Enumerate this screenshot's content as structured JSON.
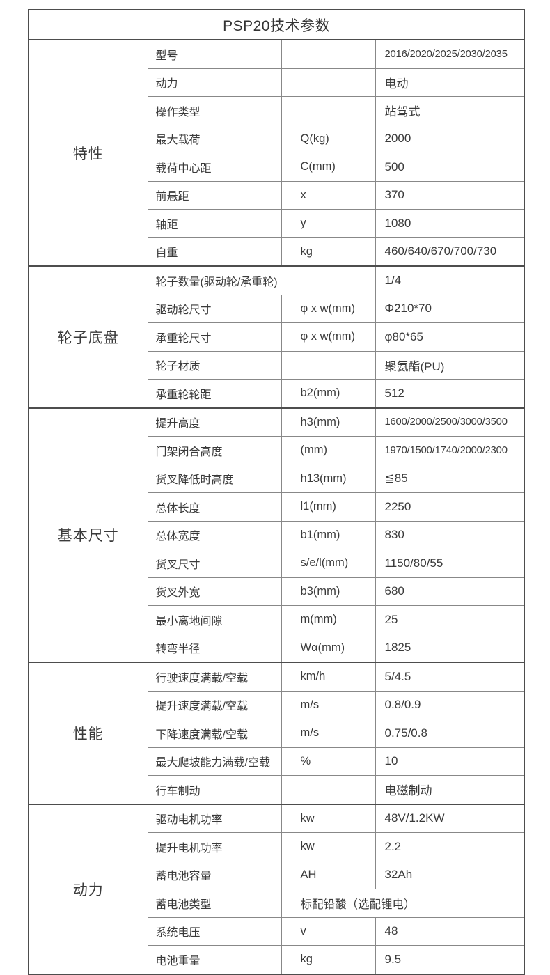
{
  "table": {
    "title": "PSP20技术参数",
    "sections": [
      {
        "name": "特性",
        "rows": [
          {
            "label": "型号",
            "unit": "",
            "value": "2016/2020/2025/2030/2035"
          },
          {
            "label": "动力",
            "unit": "",
            "value": "电动"
          },
          {
            "label": "操作类型",
            "unit": "",
            "value": "站驾式"
          },
          {
            "label": "最大载荷",
            "unit": "Q(kg)",
            "value": "2000"
          },
          {
            "label": "载荷中心距",
            "unit": "C(mm)",
            "value": "500"
          },
          {
            "label": "前悬距",
            "unit": "x",
            "value": "370"
          },
          {
            "label": "轴距",
            "unit": "y",
            "value": "1080"
          },
          {
            "label": "自重",
            "unit": "kg",
            "value": "460/640/670/700/730"
          }
        ]
      },
      {
        "name": "轮子底盘",
        "rows": [
          {
            "label": "轮子数量(驱动轮/承重轮)",
            "unit": "",
            "value": "1/4",
            "span": "label-unit"
          },
          {
            "label": "驱动轮尺寸",
            "unit": "φ x w(mm)",
            "value": "Φ210*70"
          },
          {
            "label": "承重轮尺寸",
            "unit": "φ x w(mm)",
            "value": "φ80*65"
          },
          {
            "label": "轮子材质",
            "unit": "",
            "value": "聚氨酯(PU)"
          },
          {
            "label": "承重轮轮距",
            "unit": "b2(mm)",
            "value": "512"
          }
        ]
      },
      {
        "name": "基本尺寸",
        "rows": [
          {
            "label": "提升高度",
            "unit": "h3(mm)",
            "value": "1600/2000/2500/3000/3500"
          },
          {
            "label": "门架闭合高度",
            "unit": "(mm)",
            "value": "1970/1500/1740/2000/2300"
          },
          {
            "label": "货叉降低时高度",
            "unit": "h13(mm)",
            "value": "≦85"
          },
          {
            "label": "总体长度",
            "unit": "l1(mm)",
            "value": "2250"
          },
          {
            "label": "总体宽度",
            "unit": "b1(mm)",
            "value": "830"
          },
          {
            "label": "货叉尺寸",
            "unit": "s/e/l(mm)",
            "value": "1150/80/55"
          },
          {
            "label": "货叉外宽",
            "unit": "b3(mm)",
            "value": "680"
          },
          {
            "label": "最小离地间隙",
            "unit": "m(mm)",
            "value": "25"
          },
          {
            "label": "转弯半径",
            "unit": "Wα(mm)",
            "value": "1825"
          }
        ]
      },
      {
        "name": "性能",
        "rows": [
          {
            "label": "行驶速度满载/空载",
            "unit": "km/h",
            "value": "5/4.5"
          },
          {
            "label": "提升速度满载/空载",
            "unit": "m/s",
            "value": "0.8/0.9"
          },
          {
            "label": "下降速度满载/空载",
            "unit": "m/s",
            "value": "0.75/0.8"
          },
          {
            "label": "最大爬坡能力满载/空载",
            "unit": "%",
            "value": "10"
          },
          {
            "label": "行车制动",
            "unit": "",
            "value": "电磁制动"
          }
        ]
      },
      {
        "name": "动力",
        "rows": [
          {
            "label": "驱动电机功率",
            "unit": "kw",
            "value": "48V/1.2KW"
          },
          {
            "label": "提升电机功率",
            "unit": "kw",
            "value": "2.2"
          },
          {
            "label": "蓄电池容量",
            "unit": "AH",
            "value": "32Ah"
          },
          {
            "label": "蓄电池类型",
            "unit": "",
            "value": "标配铅酸（选配锂电）",
            "span": "unit-value"
          },
          {
            "label": "系统电压",
            "unit": "v",
            "value": "48"
          },
          {
            "label": "电池重量",
            "unit": "kg",
            "value": "9.5"
          }
        ]
      }
    ]
  },
  "colors": {
    "text": "#3a3a3a",
    "inner_border": "#888888",
    "frame_border": "#4d4d4d",
    "background": "#ffffff"
  }
}
